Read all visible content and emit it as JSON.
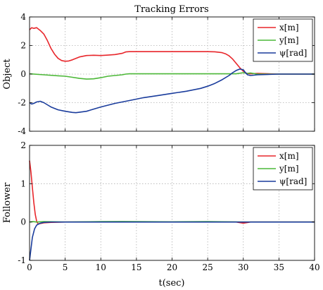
{
  "figure": {
    "title": "Tracking Errors",
    "xlabel": "t(sec)"
  },
  "colors": {
    "x": "#e8262b",
    "y": "#4cb838",
    "psi": "#1a3c9c",
    "grid": "#b0b0b0",
    "axes": "#000000"
  },
  "chart_data": [
    {
      "type": "line",
      "title": "Tracking Errors",
      "ylabel": "Object",
      "xlabel": "",
      "xlim": [
        0,
        40
      ],
      "ylim": [
        -4,
        4
      ],
      "xticks": [
        0,
        5,
        10,
        15,
        20,
        25,
        30,
        35,
        40
      ],
      "yticks": [
        -4,
        -2,
        0,
        2,
        4
      ],
      "grid": true,
      "legend_position": "top-right",
      "series": [
        {
          "name": "x[m]",
          "color": "#e8262b",
          "x": [
            0,
            0.3,
            0.6,
            1,
            1.5,
            2,
            2.5,
            3,
            3.5,
            4,
            4.5,
            5,
            5.5,
            6,
            7,
            8,
            9,
            10,
            11,
            12,
            13,
            13.5,
            14,
            15,
            20,
            25,
            26,
            27,
            27.5,
            28,
            28.5,
            29,
            29.5,
            30,
            30.5,
            31,
            32,
            35,
            40
          ],
          "y": [
            3.1,
            3.25,
            3.2,
            3.25,
            3.05,
            2.8,
            2.35,
            1.8,
            1.4,
            1.1,
            0.95,
            0.9,
            0.92,
            1.0,
            1.2,
            1.3,
            1.32,
            1.3,
            1.33,
            1.37,
            1.45,
            1.55,
            1.57,
            1.57,
            1.57,
            1.57,
            1.56,
            1.5,
            1.42,
            1.28,
            1.05,
            0.75,
            0.45,
            0.2,
            0.05,
            0.02,
            0.05,
            0.0,
            0.0
          ]
        },
        {
          "name": "y[m]",
          "color": "#4cb838",
          "x": [
            0,
            2,
            4,
            5,
            6,
            7,
            8,
            9,
            10,
            11,
            12,
            13,
            13.5,
            14,
            20,
            25,
            28,
            29,
            30,
            30.5,
            31,
            32,
            40
          ],
          "y": [
            0.02,
            -0.05,
            -0.12,
            -0.15,
            -0.22,
            -0.3,
            -0.35,
            -0.33,
            -0.25,
            -0.15,
            -0.1,
            -0.05,
            0.0,
            0.02,
            0.02,
            0.02,
            0.02,
            0.02,
            0.1,
            0.05,
            0.08,
            0.0,
            0.0
          ]
        },
        {
          "name": "ψ[rad]",
          "color": "#1a3c9c",
          "x": [
            0,
            0.3,
            0.6,
            1,
            1.5,
            2,
            2.5,
            3,
            4,
            5,
            6,
            6.5,
            7,
            8,
            9,
            10,
            12,
            14,
            16,
            18,
            20,
            22,
            24,
            25,
            26,
            27,
            28,
            28.5,
            29,
            29.5,
            30,
            30.3,
            30.6,
            31,
            32,
            35,
            40
          ],
          "y": [
            -2.0,
            -2.1,
            -2.05,
            -1.95,
            -1.9,
            -2.0,
            -2.15,
            -2.3,
            -2.5,
            -2.6,
            -2.68,
            -2.7,
            -2.67,
            -2.6,
            -2.45,
            -2.3,
            -2.05,
            -1.85,
            -1.65,
            -1.5,
            -1.35,
            -1.2,
            -1.0,
            -0.85,
            -0.65,
            -0.4,
            -0.1,
            0.1,
            0.25,
            0.35,
            0.3,
            0.1,
            -0.05,
            -0.1,
            -0.05,
            0.0,
            0.0
          ]
        }
      ]
    },
    {
      "type": "line",
      "title": "",
      "ylabel": "Follower",
      "xlabel": "t(sec)",
      "xlim": [
        0,
        40
      ],
      "ylim": [
        -1,
        2
      ],
      "xticks": [
        0,
        5,
        10,
        15,
        20,
        25,
        30,
        35,
        40
      ],
      "yticks": [
        -1,
        0,
        1,
        2
      ],
      "grid": true,
      "legend_position": "top-right",
      "series": [
        {
          "name": "x[m]",
          "color": "#e8262b",
          "x": [
            0,
            0.2,
            0.4,
            0.6,
            0.8,
            1.0,
            1.2,
            1.5,
            2,
            3,
            5,
            10,
            20,
            25,
            29,
            30,
            31,
            40
          ],
          "y": [
            1.6,
            1.3,
            0.9,
            0.5,
            0.2,
            0.02,
            -0.05,
            -0.04,
            -0.02,
            -0.01,
            0.0,
            0.0,
            0.0,
            0.0,
            0.0,
            -0.03,
            0.0,
            0.0
          ]
        },
        {
          "name": "y[m]",
          "color": "#4cb838",
          "x": [
            0,
            0.5,
            1,
            2,
            5,
            10,
            13,
            15,
            20,
            25,
            30,
            35,
            40
          ],
          "y": [
            0.0,
            0.01,
            0.0,
            0.01,
            0.0,
            0.01,
            0.015,
            0.01,
            0.005,
            0.01,
            0.0,
            0.0,
            0.0
          ]
        },
        {
          "name": "ψ[rad]",
          "color": "#1a3c9c",
          "x": [
            0,
            0.2,
            0.4,
            0.7,
            1.0,
            1.5,
            2,
            3,
            5,
            10,
            20,
            30,
            40
          ],
          "y": [
            -1.0,
            -0.7,
            -0.4,
            -0.18,
            -0.08,
            -0.03,
            -0.01,
            0.0,
            0.0,
            0.0,
            0.0,
            0.0,
            0.0
          ]
        }
      ]
    }
  ]
}
